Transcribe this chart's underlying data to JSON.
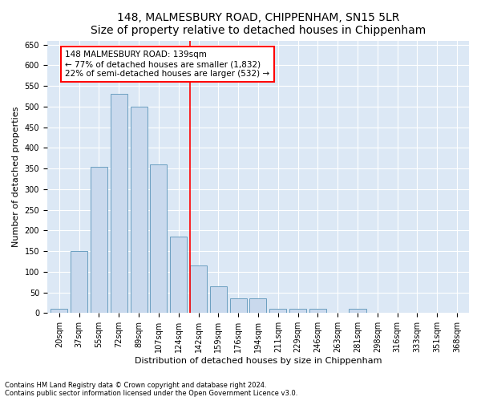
{
  "title": "148, MALMESBURY ROAD, CHIPPENHAM, SN15 5LR",
  "subtitle": "Size of property relative to detached houses in Chippenham",
  "xlabel": "Distribution of detached houses by size in Chippenham",
  "ylabel": "Number of detached properties",
  "categories": [
    "20sqm",
    "37sqm",
    "55sqm",
    "72sqm",
    "89sqm",
    "107sqm",
    "124sqm",
    "142sqm",
    "159sqm",
    "176sqm",
    "194sqm",
    "211sqm",
    "229sqm",
    "246sqm",
    "263sqm",
    "281sqm",
    "298sqm",
    "316sqm",
    "333sqm",
    "351sqm",
    "368sqm"
  ],
  "values": [
    10,
    150,
    355,
    530,
    500,
    360,
    185,
    115,
    65,
    35,
    35,
    10,
    10,
    10,
    0,
    10,
    0,
    0,
    0,
    0,
    0
  ],
  "bar_color": "#c9d9ed",
  "bar_edge_color": "#6a9ec0",
  "vline_index": 7,
  "vline_color": "red",
  "annotation_text": "148 MALMESBURY ROAD: 139sqm\n← 77% of detached houses are smaller (1,832)\n22% of semi-detached houses are larger (532) →",
  "annotation_box_color": "white",
  "annotation_box_edge_color": "red",
  "ylim": [
    0,
    660
  ],
  "yticks": [
    0,
    50,
    100,
    150,
    200,
    250,
    300,
    350,
    400,
    450,
    500,
    550,
    600,
    650
  ],
  "footer1": "Contains HM Land Registry data © Crown copyright and database right 2024.",
  "footer2": "Contains public sector information licensed under the Open Government Licence v3.0.",
  "bg_color": "#dce8f5",
  "title_fontsize": 10,
  "axis_label_fontsize": 8,
  "tick_fontsize": 7,
  "footer_fontsize": 6,
  "annotation_fontsize": 7.5
}
